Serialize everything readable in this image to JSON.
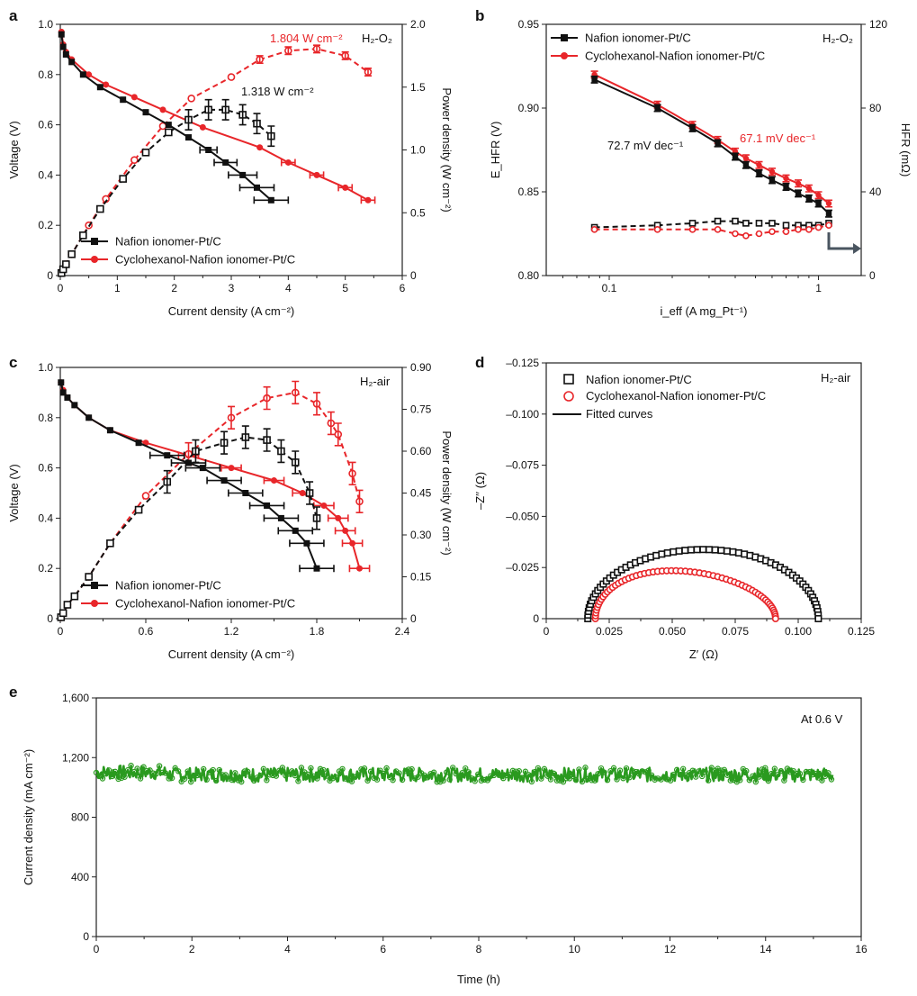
{
  "colors": {
    "black": "#111111",
    "red": "#e8262a",
    "green": "#2a9a1f",
    "arrow": "#4a5560"
  },
  "chart_data": [
    {
      "panel": "a",
      "type": "line",
      "condition": "H₂-O₂",
      "xlabel": "Current density (A cm⁻²)",
      "ylabel": "Voltage (V)",
      "y2label": "Power density (W cm⁻²)",
      "xlim": [
        0,
        6
      ],
      "ylim": [
        0,
        1.0
      ],
      "y2lim": [
        0,
        2.0
      ],
      "xticks": [
        "0",
        "1",
        "2",
        "3",
        "4",
        "5",
        "6"
      ],
      "yticks": [
        "0",
        "0.2",
        "0.4",
        "0.6",
        "0.8",
        "1.0"
      ],
      "y2ticks": [
        "0",
        "0.5",
        "1.0",
        "1.5",
        "2.0"
      ],
      "legend": [
        "Nafion ionomer-Pt/C",
        "Cyclohexanol-Nafion ionomer-Pt/C"
      ],
      "annotations": [
        "1.804 W cm⁻²",
        "1.318 W cm⁻²"
      ],
      "series": [
        {
          "name": "Nafion voltage",
          "x": [
            0.02,
            0.05,
            0.1,
            0.2,
            0.4,
            0.7,
            1.1,
            1.5,
            1.9,
            2.25,
            2.6,
            2.9,
            3.2,
            3.45,
            3.7
          ],
          "y": [
            0.96,
            0.91,
            0.88,
            0.85,
            0.8,
            0.75,
            0.7,
            0.65,
            0.6,
            0.55,
            0.5,
            0.45,
            0.4,
            0.35,
            0.3
          ]
        },
        {
          "name": "Cyclohexanol voltage",
          "x": [
            0.02,
            0.05,
            0.1,
            0.2,
            0.5,
            0.8,
            1.3,
            1.8,
            2.5,
            3.5,
            4.0,
            4.5,
            5.0,
            5.4
          ],
          "y": [
            0.97,
            0.92,
            0.89,
            0.86,
            0.8,
            0.76,
            0.71,
            0.66,
            0.59,
            0.51,
            0.45,
            0.4,
            0.35,
            0.3
          ]
        },
        {
          "name": "Nafion power",
          "x": [
            0.02,
            0.05,
            0.1,
            0.2,
            0.4,
            0.7,
            1.1,
            1.5,
            1.9,
            2.25,
            2.6,
            2.9,
            3.2,
            3.45,
            3.7
          ],
          "y": [
            0.02,
            0.05,
            0.09,
            0.17,
            0.32,
            0.53,
            0.77,
            0.98,
            1.14,
            1.24,
            1.32,
            1.32,
            1.28,
            1.21,
            1.11
          ]
        },
        {
          "name": "Cyclohexanol power",
          "x": [
            0.02,
            0.05,
            0.1,
            0.2,
            0.5,
            0.8,
            1.3,
            1.8,
            2.3,
            3.0,
            3.5,
            4.0,
            4.5,
            5.0,
            5.4
          ],
          "y": [
            0.02,
            0.05,
            0.09,
            0.17,
            0.4,
            0.61,
            0.92,
            1.19,
            1.41,
            1.58,
            1.72,
            1.79,
            1.804,
            1.75,
            1.62
          ]
        }
      ]
    },
    {
      "panel": "b",
      "type": "line",
      "condition": "H₂-O₂",
      "xlabel": "i_eff (A mg_Pt⁻¹)",
      "ylabel": "E_HFR (V)",
      "y2label": "HFR (mΩ)",
      "xscale": "log",
      "xlim": [
        0.05,
        1.6
      ],
      "ylim": [
        0.8,
        0.95
      ],
      "y2lim": [
        0,
        120
      ],
      "xticks": [
        "0.1",
        "1"
      ],
      "yticks": [
        "0.80",
        "0.85",
        "0.90",
        "0.95"
      ],
      "y2ticks": [
        "0",
        "40",
        "80",
        "120"
      ],
      "legend": [
        "Nafion ionomer-Pt/C",
        "Cyclohexanol-Nafion ionomer-Pt/C"
      ],
      "annotations": [
        "72.7 mV dec⁻¹",
        "67.1 mV dec⁻¹"
      ],
      "series": [
        {
          "name": "Nafion E_HFR",
          "x": [
            0.085,
            0.17,
            0.25,
            0.33,
            0.4,
            0.45,
            0.52,
            0.6,
            0.7,
            0.8,
            0.9,
            1.0,
            1.12
          ],
          "y": [
            0.917,
            0.9,
            0.888,
            0.879,
            0.871,
            0.866,
            0.861,
            0.857,
            0.853,
            0.849,
            0.846,
            0.843,
            0.837
          ]
        },
        {
          "name": "Cyclohexanol E_HFR",
          "x": [
            0.085,
            0.17,
            0.25,
            0.33,
            0.4,
            0.45,
            0.52,
            0.6,
            0.7,
            0.8,
            0.9,
            1.0,
            1.12
          ],
          "y": [
            0.92,
            0.902,
            0.89,
            0.881,
            0.874,
            0.87,
            0.866,
            0.862,
            0.858,
            0.855,
            0.852,
            0.848,
            0.843
          ]
        },
        {
          "name": "Nafion HFR",
          "x": [
            0.085,
            0.17,
            0.25,
            0.33,
            0.4,
            0.45,
            0.52,
            0.6,
            0.7,
            0.8,
            0.9,
            1.0,
            1.12
          ],
          "y": [
            23,
            24,
            25,
            26,
            26,
            25,
            25,
            25,
            24,
            24,
            24,
            24,
            25
          ]
        },
        {
          "name": "Cyclohexanol HFR",
          "x": [
            0.085,
            0.17,
            0.25,
            0.33,
            0.4,
            0.45,
            0.52,
            0.6,
            0.7,
            0.8,
            0.9,
            1.0,
            1.12
          ],
          "y": [
            22,
            22,
            22,
            22,
            20,
            19,
            20,
            21,
            21,
            22,
            22,
            23,
            24
          ]
        }
      ]
    },
    {
      "panel": "c",
      "type": "line",
      "condition": "H₂-air",
      "xlabel": "Current density (A cm⁻²)",
      "ylabel": "Voltage (V)",
      "y2label": "Power density (W cm⁻²)",
      "xlim": [
        0,
        2.4
      ],
      "ylim": [
        0,
        1.0
      ],
      "y2lim": [
        0,
        0.9
      ],
      "xticks": [
        "0",
        "0.6",
        "1.2",
        "1.8",
        "2.4"
      ],
      "yticks": [
        "0",
        "0.2",
        "0.4",
        "0.6",
        "0.8",
        "1.0"
      ],
      "y2ticks": [
        "0",
        "0.15",
        "0.30",
        "0.45",
        "0.60",
        "0.75",
        "0.90"
      ],
      "legend": [
        "Nafion ionomer-Pt/C",
        "Cyclohexanol-Nafion ionomer-Pt/C"
      ],
      "series": [
        {
          "name": "Nafion voltage",
          "x": [
            0.005,
            0.02,
            0.05,
            0.1,
            0.2,
            0.35,
            0.55,
            0.75,
            0.9,
            1.0,
            1.15,
            1.3,
            1.45,
            1.55,
            1.65,
            1.73,
            1.8
          ],
          "y": [
            0.94,
            0.9,
            0.88,
            0.85,
            0.8,
            0.75,
            0.7,
            0.65,
            0.62,
            0.6,
            0.55,
            0.5,
            0.45,
            0.4,
            0.35,
            0.3,
            0.2
          ]
        },
        {
          "name": "Cyclohexanol voltage",
          "x": [
            0.005,
            0.02,
            0.05,
            0.1,
            0.2,
            0.35,
            0.6,
            0.9,
            1.2,
            1.5,
            1.7,
            1.85,
            1.95,
            2.0,
            2.05,
            2.1
          ],
          "y": [
            0.94,
            0.91,
            0.88,
            0.85,
            0.8,
            0.75,
            0.7,
            0.65,
            0.6,
            0.55,
            0.5,
            0.45,
            0.4,
            0.35,
            0.3,
            0.2
          ]
        },
        {
          "name": "Nafion power",
          "x": [
            0.005,
            0.02,
            0.05,
            0.1,
            0.2,
            0.35,
            0.55,
            0.75,
            0.95,
            1.15,
            1.3,
            1.45,
            1.55,
            1.65,
            1.75,
            1.8
          ],
          "y": [
            0.005,
            0.02,
            0.05,
            0.08,
            0.15,
            0.27,
            0.39,
            0.49,
            0.6,
            0.63,
            0.65,
            0.64,
            0.6,
            0.56,
            0.45,
            0.36
          ]
        },
        {
          "name": "Cyclohexanol power",
          "x": [
            0.005,
            0.02,
            0.05,
            0.1,
            0.2,
            0.35,
            0.6,
            0.9,
            1.2,
            1.45,
            1.65,
            1.8,
            1.9,
            1.95,
            2.05,
            2.1
          ],
          "y": [
            0.005,
            0.02,
            0.05,
            0.08,
            0.15,
            0.27,
            0.44,
            0.59,
            0.72,
            0.79,
            0.81,
            0.77,
            0.7,
            0.66,
            0.52,
            0.42
          ]
        }
      ]
    },
    {
      "panel": "d",
      "type": "scatter",
      "condition": "H₂-air",
      "xlabel": "Z′ (Ω)",
      "ylabel": "–Z′′ (Ω)",
      "xlim": [
        0,
        0.125
      ],
      "ylim": [
        0,
        -0.125
      ],
      "xticks": [
        "0",
        "0.025",
        "0.050",
        "0.075",
        "0.100",
        "0.125"
      ],
      "yticks": [
        "0",
        "–0.025",
        "–0.050",
        "–0.075",
        "–0.100",
        "–0.125"
      ],
      "legend": [
        "Nafion ionomer-Pt/C",
        "Cyclohexanol-Nafion ionomer-Pt/C",
        "Fitted curves"
      ],
      "series": [
        {
          "name": "Nafion ionomer-Pt/C",
          "x_range": [
            0.0165,
            0.108
          ],
          "peak_x": 0.054,
          "peak_neg_imag": 0.0338
        },
        {
          "name": "Cyclohexanol-Nafion ionomer-Pt/C",
          "x_range": [
            0.0195,
            0.091
          ],
          "peak_x": 0.048,
          "peak_neg_imag": 0.0232
        }
      ]
    },
    {
      "panel": "e",
      "type": "scatter",
      "condition": "At 0.6 V",
      "xlabel": "Time (h)",
      "ylabel": "Current density (mA cm⁻²)",
      "xlim": [
        0,
        16
      ],
      "ylim": [
        0,
        1600
      ],
      "xticks": [
        "0",
        "2",
        "4",
        "6",
        "8",
        "10",
        "12",
        "14",
        "16"
      ],
      "yticks": [
        "0",
        "400",
        "800",
        "1,200",
        "1,600"
      ],
      "series": [
        {
          "name": "Current density at 0.6 V",
          "x_range": [
            0,
            15.4
          ],
          "mean": 1085,
          "band": [
            1030,
            1150
          ]
        }
      ]
    }
  ]
}
